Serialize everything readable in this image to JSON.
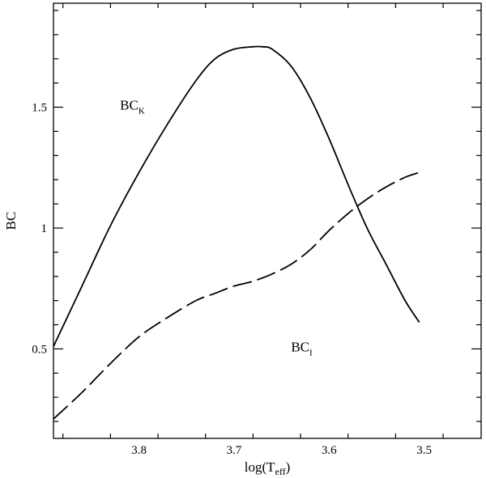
{
  "chart_data": {
    "type": "line",
    "title": "",
    "xlabel": {
      "base": "log(T",
      "sub": "eff",
      "close": ")"
    },
    "ylabel": "BC",
    "xlim": [
      3.89,
      3.44
    ],
    "ylim": [
      0.13,
      1.93
    ],
    "x_reversed": true,
    "grid": false,
    "legend": "none",
    "xticks": [
      3.8,
      3.7,
      3.6,
      3.5
    ],
    "xtick_labels": [
      "3.8",
      "3.7",
      "3.6",
      "3.5"
    ],
    "yticks": [
      0.5,
      1.0,
      1.5
    ],
    "ytick_labels": [
      "0.5",
      "1",
      "1.5"
    ],
    "series": [
      {
        "label": {
          "base": "BC",
          "sub": "K"
        },
        "label_at": {
          "x": 3.82,
          "y": 1.49
        },
        "style": "solid",
        "color": "#000000",
        "x": [
          3.89,
          3.86,
          3.83,
          3.8,
          3.77,
          3.74,
          3.72,
          3.7,
          3.68,
          3.67,
          3.66,
          3.64,
          3.62,
          3.6,
          3.58,
          3.56,
          3.54,
          3.52,
          3.505
        ],
        "y": [
          0.51,
          0.76,
          1.01,
          1.23,
          1.43,
          1.61,
          1.7,
          1.74,
          1.75,
          1.75,
          1.74,
          1.67,
          1.54,
          1.37,
          1.18,
          1.0,
          0.85,
          0.7,
          0.61
        ]
      },
      {
        "label": {
          "base": "BC",
          "sub": "I"
        },
        "label_at": {
          "x": 3.64,
          "y": 0.49
        },
        "style": "dashed",
        "color": "#000000",
        "x": [
          3.89,
          3.86,
          3.83,
          3.8,
          3.77,
          3.74,
          3.72,
          3.7,
          3.68,
          3.66,
          3.64,
          3.62,
          3.6,
          3.58,
          3.56,
          3.54,
          3.52,
          3.505
        ],
        "y": [
          0.21,
          0.32,
          0.44,
          0.55,
          0.63,
          0.7,
          0.73,
          0.76,
          0.78,
          0.81,
          0.85,
          0.91,
          0.99,
          1.06,
          1.12,
          1.17,
          1.21,
          1.23
        ]
      }
    ]
  }
}
